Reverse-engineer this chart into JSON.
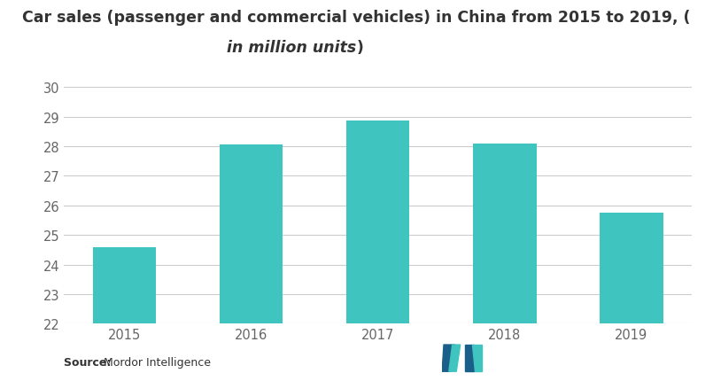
{
  "categories": [
    "2015",
    "2016",
    "2017",
    "2018",
    "2019"
  ],
  "values": [
    24.6,
    28.05,
    28.88,
    28.08,
    25.74
  ],
  "bar_color": "#40C4BF",
  "title_line1": "Car sales (passenger and commercial vehicles) in China from 2015 to 2019, (",
  "title_line2_italic": "in million units",
  "title_line2_end": ")",
  "ylim": [
    22,
    30
  ],
  "yticks": [
    22,
    23,
    24,
    25,
    26,
    27,
    28,
    29,
    30
  ],
  "source_label": "Source: ",
  "source_text": "Mordor Intelligence",
  "background_color": "#ffffff",
  "bar_width": 0.5,
  "grid_color": "#cccccc",
  "tick_color": "#666666",
  "title_fontsize": 12.5,
  "axis_fontsize": 10.5,
  "logo_color_teal": "#40C4BF",
  "logo_color_blue": "#1a5f8a"
}
